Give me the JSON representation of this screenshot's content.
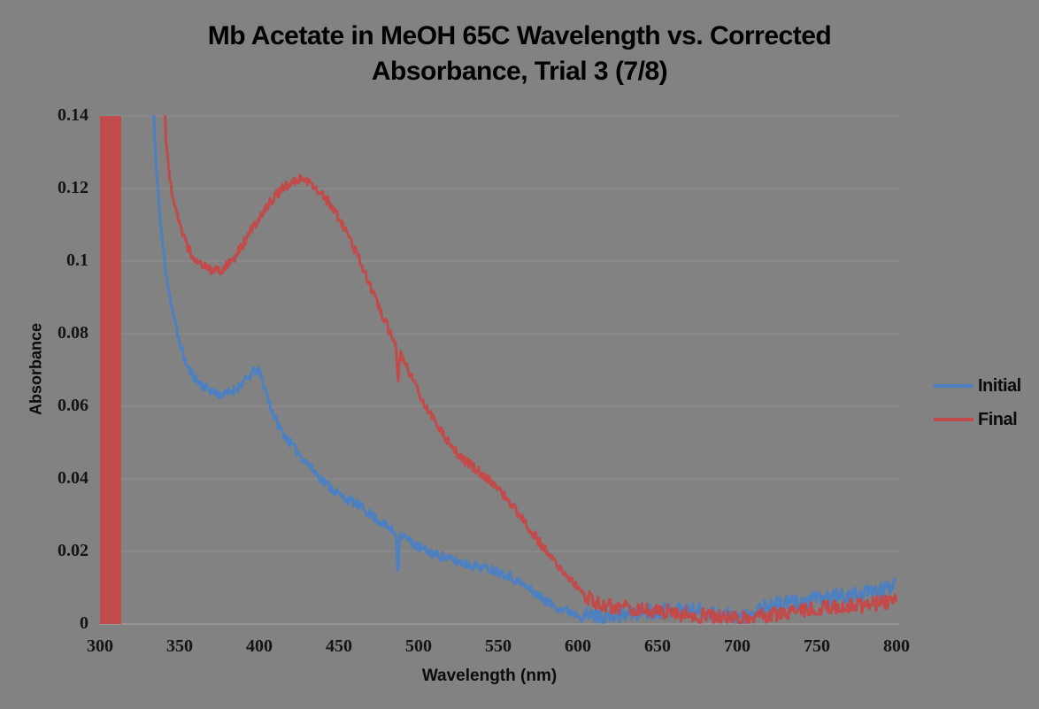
{
  "title": {
    "line1": "Mb Acetate in MeOH 65C Wavelength vs. Corrected",
    "line2": "Absorbance, Trial 3 (7/8)"
  },
  "colors": {
    "background": "#828282",
    "gridline": "#909090",
    "axis_line": "#9c9c9c",
    "tick_text": "#141414",
    "title_text": "#000000",
    "initial_series": "#4d80c0",
    "final_series": "#c14b4b"
  },
  "chart_data": {
    "type": "line",
    "title": "Mb Acetate in MeOH 65C Wavelength vs. Corrected Absorbance, Trial 3 (7/8)",
    "xlabel": "Wavelength (nm)",
    "ylabel": "Absorbance",
    "xlim": [
      300,
      800
    ],
    "ylim": [
      0,
      0.14
    ],
    "grid": "horizontal-only",
    "legend_position": "right",
    "x_ticks": [
      300,
      350,
      400,
      450,
      500,
      550,
      600,
      650,
      700,
      750,
      800
    ],
    "y_ticks": [
      {
        "label": "0",
        "value": 0
      },
      {
        "label": "0.02",
        "value": 0.02
      },
      {
        "label": "0.04",
        "value": 0.04
      },
      {
        "label": "0.06",
        "value": 0.06
      },
      {
        "label": "0.08",
        "value": 0.08
      },
      {
        "label": "0.1",
        "value": 0.1
      },
      {
        "label": "0.12",
        "value": 0.12
      },
      {
        "label": "0.14",
        "value": 0.14
      }
    ],
    "series": [
      {
        "name": "Initial",
        "color": "#4d80c0",
        "clipped_above": 0.14,
        "noise_seed": 11,
        "noise_amplitude": 0.0013,
        "tail_noise_start": 602,
        "tail_noise_amplitude": 0.0021,
        "artifact_spike_nm": 487,
        "points": [
          [
            332,
            0.2
          ],
          [
            334,
            0.135
          ],
          [
            336,
            0.122
          ],
          [
            338,
            0.11
          ],
          [
            340,
            0.102
          ],
          [
            342,
            0.0955
          ],
          [
            344,
            0.09
          ],
          [
            346,
            0.0852
          ],
          [
            348,
            0.0812
          ],
          [
            350,
            0.0778
          ],
          [
            352,
            0.0745
          ],
          [
            354,
            0.0718
          ],
          [
            356,
            0.07
          ],
          [
            358,
            0.0688
          ],
          [
            360,
            0.0676
          ],
          [
            363,
            0.0662
          ],
          [
            366,
            0.0652
          ],
          [
            369,
            0.0645
          ],
          [
            372,
            0.0638
          ],
          [
            375,
            0.0633
          ],
          [
            378,
            0.0632
          ],
          [
            381,
            0.0638
          ],
          [
            384,
            0.0645
          ],
          [
            387,
            0.0655
          ],
          [
            390,
            0.0666
          ],
          [
            393,
            0.0678
          ],
          [
            396,
            0.0692
          ],
          [
            398,
            0.07
          ],
          [
            400,
            0.0693
          ],
          [
            402,
            0.0672
          ],
          [
            404,
            0.0643
          ],
          [
            406,
            0.0614
          ],
          [
            408,
            0.0589
          ],
          [
            410,
            0.0566
          ],
          [
            412,
            0.0547
          ],
          [
            415,
            0.0526
          ],
          [
            418,
            0.0507
          ],
          [
            421,
            0.049
          ],
          [
            424,
            0.0474
          ],
          [
            427,
            0.0459
          ],
          [
            430,
            0.0444
          ],
          [
            433,
            0.0429
          ],
          [
            436,
            0.0414
          ],
          [
            439,
            0.04
          ],
          [
            442,
            0.0386
          ],
          [
            445,
            0.0374
          ],
          [
            448,
            0.0364
          ],
          [
            451,
            0.0354
          ],
          [
            454,
            0.0346
          ],
          [
            457,
            0.034
          ],
          [
            460,
            0.0334
          ],
          [
            463,
            0.0325
          ],
          [
            466,
            0.0315
          ],
          [
            469,
            0.0305
          ],
          [
            472,
            0.0295
          ],
          [
            475,
            0.0285
          ],
          [
            478,
            0.0275
          ],
          [
            481,
            0.0265
          ],
          [
            484,
            0.0256
          ],
          [
            486,
            0.025
          ],
          [
            487,
            0.0118
          ],
          [
            488,
            0.0246
          ],
          [
            491,
            0.024
          ],
          [
            494,
            0.0231
          ],
          [
            497,
            0.0221
          ],
          [
            500,
            0.0212
          ],
          [
            503,
            0.0205
          ],
          [
            506,
            0.0199
          ],
          [
            509,
            0.0194
          ],
          [
            512,
            0.019
          ],
          [
            515,
            0.0186
          ],
          [
            518,
            0.0181
          ],
          [
            521,
            0.0176
          ],
          [
            524,
            0.0172
          ],
          [
            527,
            0.0169
          ],
          [
            530,
            0.0166
          ],
          [
            533,
            0.0163
          ],
          [
            536,
            0.016
          ],
          [
            539,
            0.0157
          ],
          [
            542,
            0.0154
          ],
          [
            545,
            0.0151
          ],
          [
            548,
            0.0148
          ],
          [
            551,
            0.0144
          ],
          [
            554,
            0.0139
          ],
          [
            557,
            0.0132
          ],
          [
            560,
            0.0124
          ],
          [
            563,
            0.0116
          ],
          [
            566,
            0.0107
          ],
          [
            569,
            0.0098
          ],
          [
            572,
            0.0089
          ],
          [
            575,
            0.0079
          ],
          [
            578,
            0.0069
          ],
          [
            581,
            0.0061
          ],
          [
            584,
            0.0054
          ],
          [
            587,
            0.0047
          ],
          [
            590,
            0.0041
          ],
          [
            593,
            0.0037
          ],
          [
            596,
            0.0032
          ],
          [
            600,
            0.0028
          ],
          [
            605,
            0.0024
          ],
          [
            610,
            0.0022
          ],
          [
            615,
            0.0021
          ],
          [
            620,
            0.0022
          ],
          [
            625,
            0.0024
          ],
          [
            630,
            0.0027
          ],
          [
            640,
            0.0032
          ],
          [
            650,
            0.0037
          ],
          [
            660,
            0.004
          ],
          [
            670,
            0.004
          ],
          [
            680,
            0.0034
          ],
          [
            690,
            0.0027
          ],
          [
            700,
            0.0021
          ],
          [
            705,
            0.0024
          ],
          [
            710,
            0.0033
          ],
          [
            715,
            0.0043
          ],
          [
            720,
            0.005
          ],
          [
            730,
            0.0057
          ],
          [
            740,
            0.0062
          ],
          [
            750,
            0.0068
          ],
          [
            760,
            0.0074
          ],
          [
            770,
            0.0079
          ],
          [
            780,
            0.0085
          ],
          [
            790,
            0.0092
          ],
          [
            795,
            0.01
          ],
          [
            798,
            0.0112
          ],
          [
            800,
            0.0128
          ]
        ]
      },
      {
        "name": "Final",
        "color": "#c14b4b",
        "clipped_above": 0.14,
        "saturated_band_nm": [
          300,
          313.3
        ],
        "noise_seed": 47,
        "noise_amplitude": 0.0013,
        "tail_noise_start": 602,
        "tail_noise_amplitude": 0.0021,
        "artifact_spike_nm": 487,
        "points": [
          [
            339,
            0.2
          ],
          [
            341,
            0.135
          ],
          [
            343,
            0.126
          ],
          [
            345,
            0.12
          ],
          [
            347,
            0.1155
          ],
          [
            349,
            0.1118
          ],
          [
            351,
            0.1088
          ],
          [
            353,
            0.1062
          ],
          [
            355,
            0.104
          ],
          [
            357,
            0.1023
          ],
          [
            359,
            0.1012
          ],
          [
            361,
            0.1002
          ],
          [
            363,
            0.0995
          ],
          [
            366,
            0.0986
          ],
          [
            369,
            0.0978
          ],
          [
            372,
            0.0973
          ],
          [
            375,
            0.0975
          ],
          [
            378,
            0.0982
          ],
          [
            381,
            0.0993
          ],
          [
            384,
            0.1008
          ],
          [
            387,
            0.1028
          ],
          [
            390,
            0.1048
          ],
          [
            393,
            0.1072
          ],
          [
            396,
            0.1094
          ],
          [
            399,
            0.1114
          ],
          [
            402,
            0.1134
          ],
          [
            405,
            0.1153
          ],
          [
            408,
            0.1169
          ],
          [
            411,
            0.1184
          ],
          [
            414,
            0.1197
          ],
          [
            417,
            0.1207
          ],
          [
            420,
            0.1215
          ],
          [
            423,
            0.1221
          ],
          [
            426,
            0.1224
          ],
          [
            429,
            0.1221
          ],
          [
            432,
            0.1214
          ],
          [
            435,
            0.1204
          ],
          [
            438,
            0.1192
          ],
          [
            441,
            0.1177
          ],
          [
            444,
            0.1159
          ],
          [
            447,
            0.1139
          ],
          [
            450,
            0.1117
          ],
          [
            453,
            0.1094
          ],
          [
            456,
            0.1069
          ],
          [
            459,
            0.1041
          ],
          [
            462,
            0.1012
          ],
          [
            465,
            0.0982
          ],
          [
            468,
            0.0951
          ],
          [
            471,
            0.0919
          ],
          [
            474,
            0.0887
          ],
          [
            477,
            0.0855
          ],
          [
            480,
            0.0823
          ],
          [
            483,
            0.0792
          ],
          [
            486,
            0.0763
          ],
          [
            487,
            0.0642
          ],
          [
            488,
            0.075
          ],
          [
            491,
            0.0722
          ],
          [
            494,
            0.0694
          ],
          [
            497,
            0.0667
          ],
          [
            500,
            0.064
          ],
          [
            503,
            0.0614
          ],
          [
            506,
            0.0589
          ],
          [
            509,
            0.0565
          ],
          [
            512,
            0.0544
          ],
          [
            515,
            0.0527
          ],
          [
            518,
            0.0509
          ],
          [
            521,
            0.0491
          ],
          [
            524,
            0.0474
          ],
          [
            527,
            0.0459
          ],
          [
            530,
            0.0447
          ],
          [
            533,
            0.0437
          ],
          [
            536,
            0.0427
          ],
          [
            539,
            0.0417
          ],
          [
            542,
            0.0407
          ],
          [
            545,
            0.0395
          ],
          [
            548,
            0.0383
          ],
          [
            551,
            0.0369
          ],
          [
            554,
            0.0353
          ],
          [
            557,
            0.0336
          ],
          [
            560,
            0.0319
          ],
          [
            563,
            0.0301
          ],
          [
            566,
            0.0284
          ],
          [
            569,
            0.0267
          ],
          [
            572,
            0.0249
          ],
          [
            575,
            0.0231
          ],
          [
            578,
            0.0214
          ],
          [
            581,
            0.0197
          ],
          [
            584,
            0.0179
          ],
          [
            587,
            0.0162
          ],
          [
            590,
            0.0146
          ],
          [
            593,
            0.0131
          ],
          [
            596,
            0.0116
          ],
          [
            600,
            0.01
          ],
          [
            604,
            0.0082
          ],
          [
            608,
            0.007
          ],
          [
            612,
            0.0061
          ],
          [
            616,
            0.0054
          ],
          [
            620,
            0.0049
          ],
          [
            625,
            0.0046
          ],
          [
            630,
            0.0045
          ],
          [
            640,
            0.0041
          ],
          [
            650,
            0.0037
          ],
          [
            660,
            0.0031
          ],
          [
            670,
            0.0025
          ],
          [
            680,
            0.0021
          ],
          [
            690,
            0.0017
          ],
          [
            700,
            0.0014
          ],
          [
            710,
            0.0017
          ],
          [
            720,
            0.0025
          ],
          [
            730,
            0.0033
          ],
          [
            740,
            0.0037
          ],
          [
            750,
            0.0041
          ],
          [
            760,
            0.0047
          ],
          [
            770,
            0.0049
          ],
          [
            780,
            0.0051
          ],
          [
            790,
            0.0057
          ],
          [
            800,
            0.0068
          ]
        ]
      }
    ]
  }
}
